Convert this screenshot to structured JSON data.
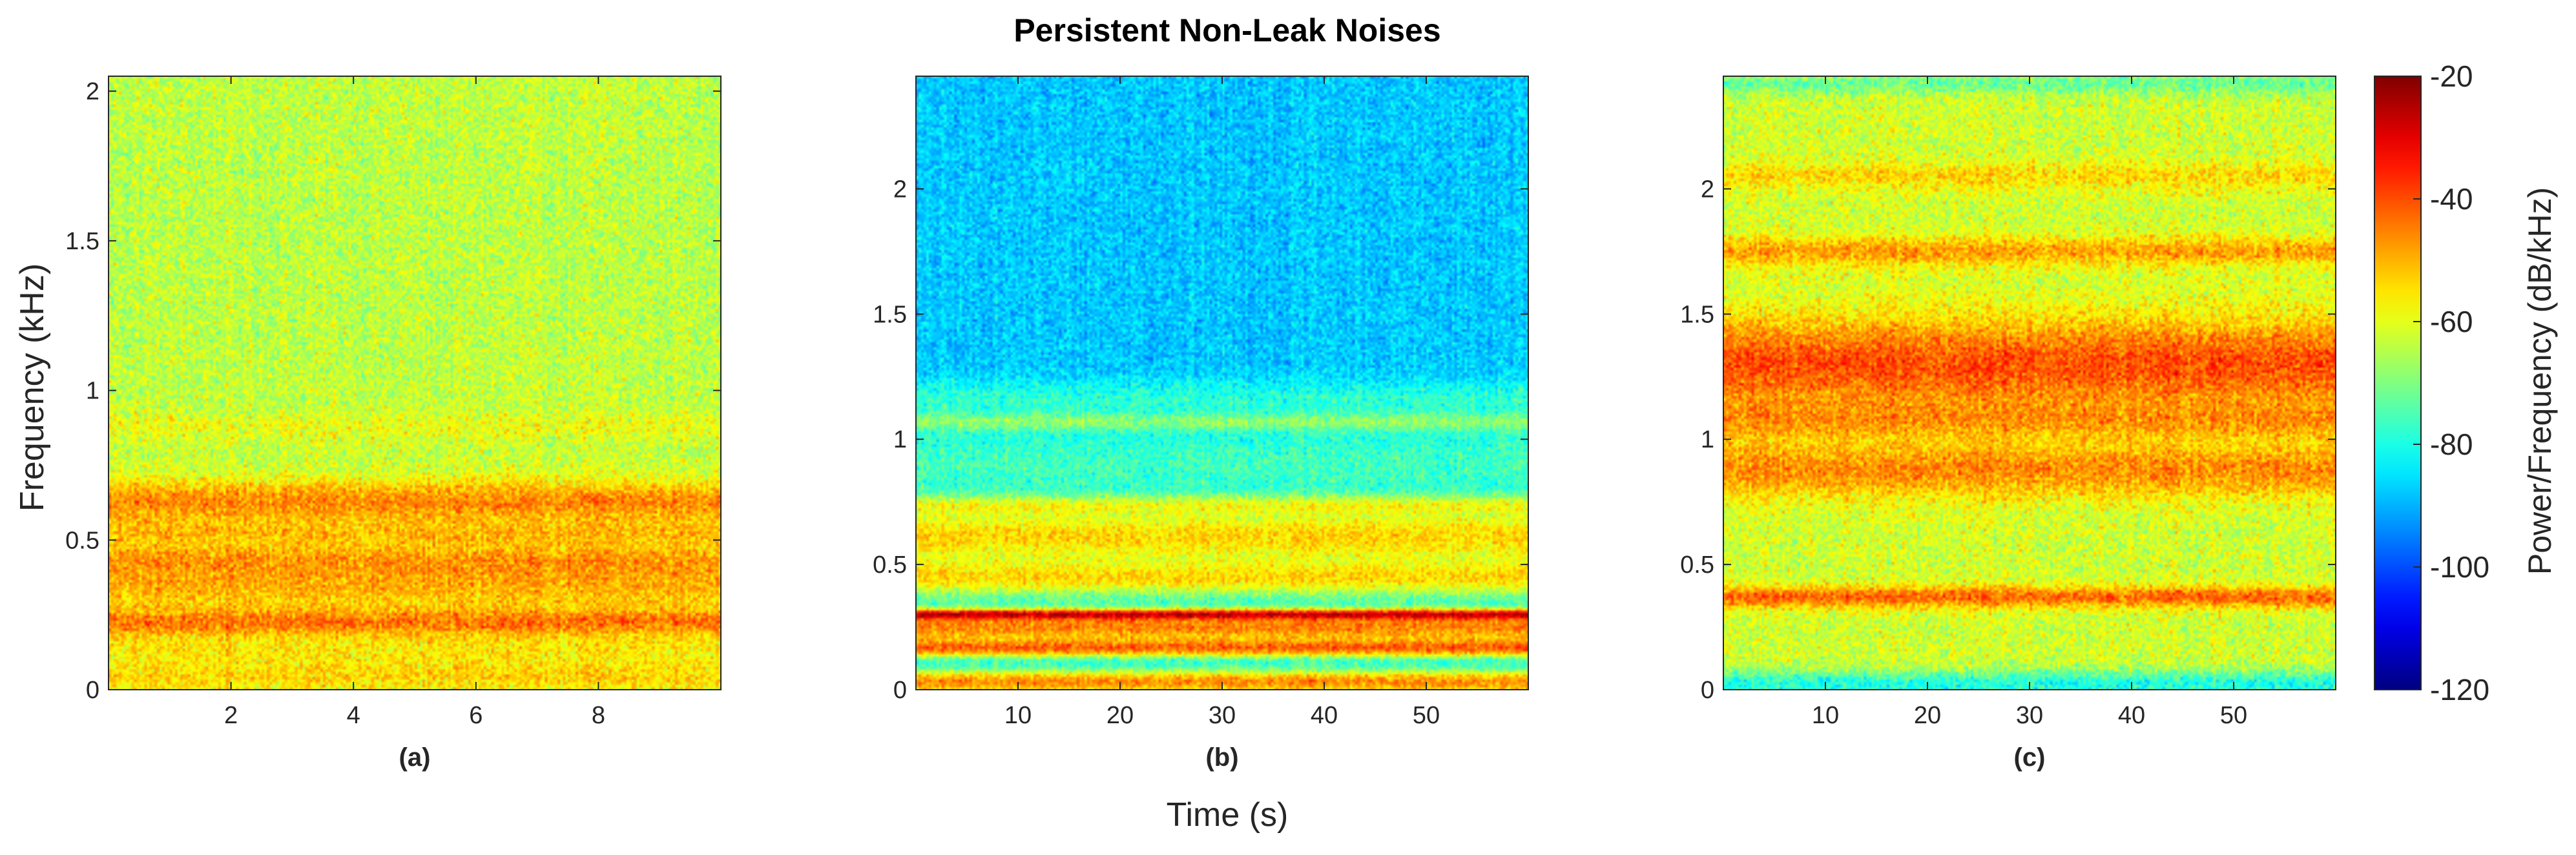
{
  "title": "Persistent Non-Leak Noises",
  "xlabel": "Time (s)",
  "ylabel": "Frequency (kHz)",
  "colorbar": {
    "label": "Power/Frequency (dB/kHz)",
    "range": [
      -120,
      -20
    ],
    "ticks": [
      -20,
      -40,
      -60,
      -80,
      -100,
      -120
    ],
    "colormap": "jet"
  },
  "chart_data": [
    {
      "type": "heatmap",
      "panel_label": "(a)",
      "xlim": [
        0,
        10
      ],
      "ylim": [
        0,
        2.05
      ],
      "xticks": [
        2,
        4,
        6,
        8
      ],
      "yticks": [
        0,
        0.5,
        1,
        1.5,
        2
      ],
      "base_level_db": -62,
      "noise_db": 6,
      "bands": [
        {
          "freq_khz": 0.05,
          "width_khz": 0.04,
          "level_db": -52
        },
        {
          "freq_khz": 0.13,
          "width_khz": 0.05,
          "level_db": -55
        },
        {
          "freq_khz": 0.23,
          "width_khz": 0.035,
          "level_db": -40
        },
        {
          "freq_khz": 0.35,
          "width_khz": 0.06,
          "level_db": -48
        },
        {
          "freq_khz": 0.43,
          "width_khz": 0.05,
          "level_db": -42
        },
        {
          "freq_khz": 0.52,
          "width_khz": 0.04,
          "level_db": -47
        },
        {
          "freq_khz": 0.63,
          "width_khz": 0.05,
          "level_db": -36
        },
        {
          "freq_khz": 0.88,
          "width_khz": 0.03,
          "level_db": -52
        },
        {
          "freq_khz": 1.5,
          "width_khz": 0.6,
          "level_db": -64
        }
      ]
    },
    {
      "type": "heatmap",
      "panel_label": "(b)",
      "xlim": [
        0,
        60
      ],
      "ylim": [
        0,
        2.45
      ],
      "xticks": [
        10,
        20,
        30,
        40,
        50
      ],
      "yticks": [
        0,
        0.5,
        1,
        1.5,
        2
      ],
      "base_level_db": -88,
      "noise_db": 5,
      "bands": [
        {
          "freq_khz": 0.03,
          "width_khz": 0.04,
          "level_db": -46
        },
        {
          "freq_khz": 0.17,
          "width_khz": 0.03,
          "level_db": -40
        },
        {
          "freq_khz": 0.25,
          "width_khz": 0.05,
          "level_db": -45
        },
        {
          "freq_khz": 0.3,
          "width_khz": 0.015,
          "level_db": -24
        },
        {
          "freq_khz": 0.45,
          "width_khz": 0.06,
          "level_db": -54
        },
        {
          "freq_khz": 0.62,
          "width_khz": 0.1,
          "level_db": -52
        },
        {
          "freq_khz": 0.74,
          "width_khz": 0.03,
          "level_db": -46
        },
        {
          "freq_khz": 0.9,
          "width_khz": 0.12,
          "level_db": -76
        },
        {
          "freq_khz": 1.08,
          "width_khz": 0.03,
          "level_db": -60
        },
        {
          "freq_khz": 1.15,
          "width_khz": 0.06,
          "level_db": -78
        }
      ]
    },
    {
      "type": "heatmap",
      "panel_label": "(c)",
      "xlim": [
        0,
        60
      ],
      "ylim": [
        0,
        2.45
      ],
      "xticks": [
        10,
        20,
        30,
        40,
        50
      ],
      "yticks": [
        0,
        0.5,
        1,
        1.5,
        2
      ],
      "base_level_db": -62,
      "noise_db": 6,
      "bands": [
        {
          "freq_khz": 0.02,
          "width_khz": 0.04,
          "level_db": -80
        },
        {
          "freq_khz": 0.37,
          "width_khz": 0.03,
          "level_db": -42
        },
        {
          "freq_khz": 0.88,
          "width_khz": 0.08,
          "level_db": -46
        },
        {
          "freq_khz": 1.08,
          "width_khz": 0.06,
          "level_db": -48
        },
        {
          "freq_khz": 1.3,
          "width_khz": 0.13,
          "level_db": -40
        },
        {
          "freq_khz": 1.75,
          "width_khz": 0.04,
          "level_db": -48
        },
        {
          "freq_khz": 2.05,
          "width_khz": 0.04,
          "level_db": -54
        },
        {
          "freq_khz": 2.42,
          "width_khz": 0.03,
          "level_db": -72
        }
      ]
    }
  ]
}
